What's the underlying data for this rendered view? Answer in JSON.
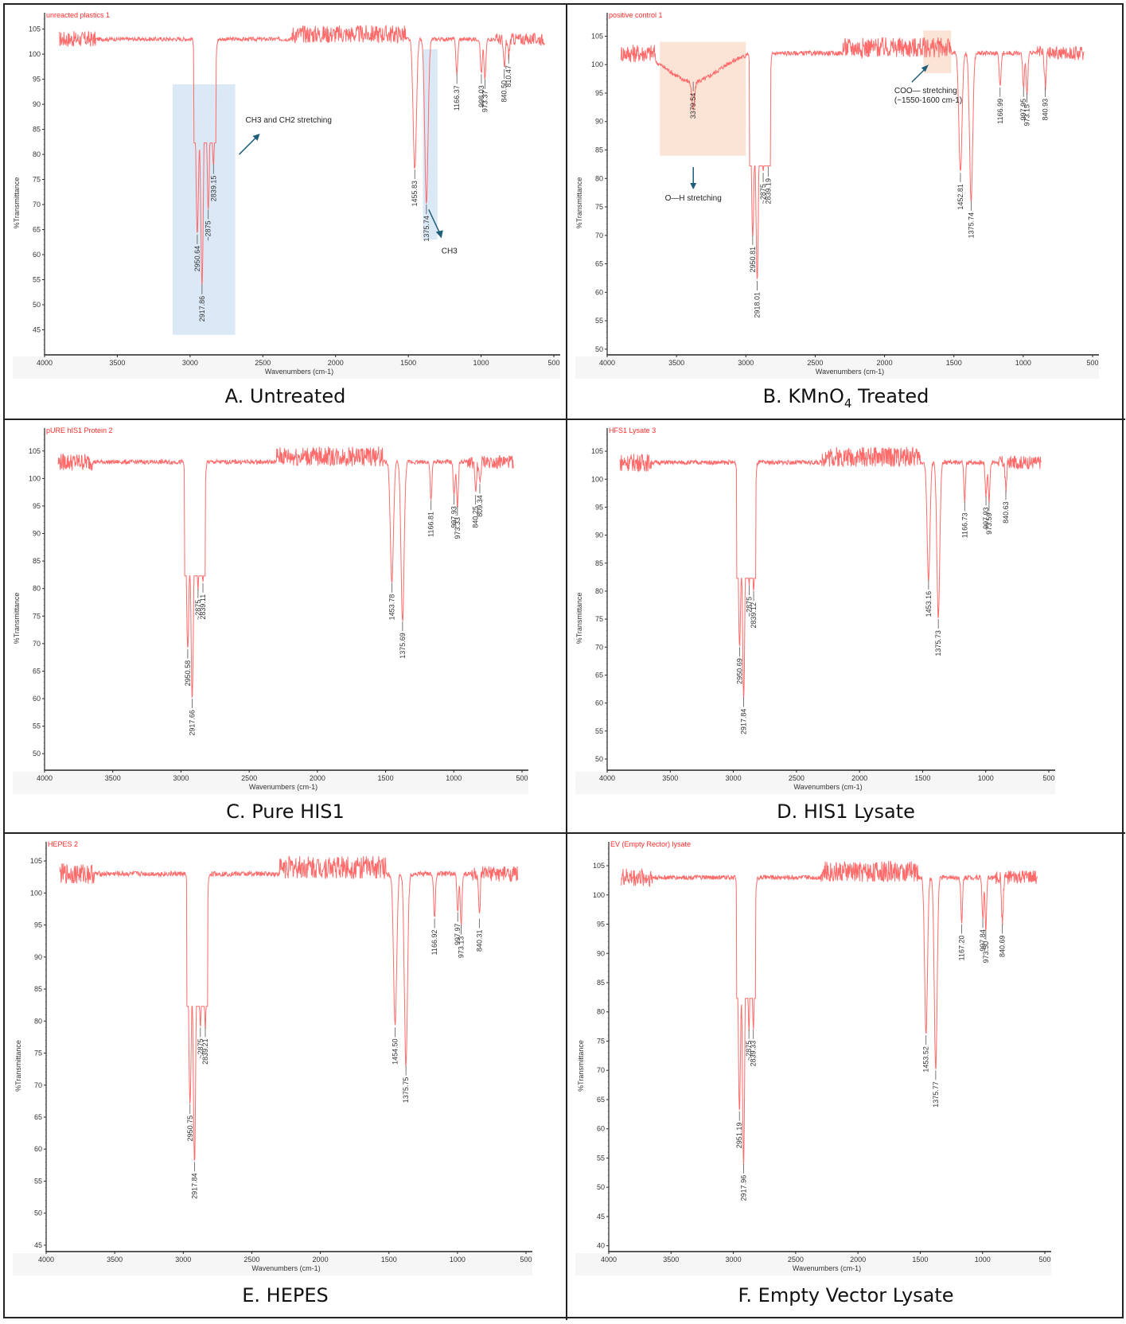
{
  "figure": {
    "panels_layout": "3 rows x 2 columns"
  },
  "colors": {
    "spectrum": "#ff6b6b",
    "peak_leader": "#555555",
    "highlight_blue": "#dbe8f6",
    "highlight_orange": "#fbe3d6",
    "arrow": "#1f5f7a"
  },
  "chart_data": [
    {
      "type": "line",
      "panel_id": "A",
      "caption": "A. Untreated",
      "sample_label": "unreacted plastics 1",
      "xlabel": "Wavenumbers (cm-1)",
      "ylabel": "%Transmittance",
      "xlim": [
        4000,
        500
      ],
      "ylim": [
        40,
        107
      ],
      "xticks": [
        4000,
        3500,
        3000,
        2500,
        2000,
        1500,
        1000,
        500
      ],
      "yticks": [
        45,
        50,
        55,
        60,
        65,
        70,
        75,
        80,
        85,
        90,
        95,
        100,
        105
      ],
      "baseline": 103,
      "peaks": [
        {
          "label": "2950.64",
          "x": 2950.64,
          "y": 64
        },
        {
          "label": "2917.86",
          "x": 2917.86,
          "y": 54
        },
        {
          "label": "~2875",
          "x": 2875,
          "y": 69
        },
        {
          "label": "2839.15",
          "x": 2839.15,
          "y": 78
        },
        {
          "label": "1455.83",
          "x": 1455.83,
          "y": 77
        },
        {
          "label": "1375.74",
          "x": 1375.74,
          "y": 70
        },
        {
          "label": "1166.37",
          "x": 1166.37,
          "y": 96
        },
        {
          "label": "998.03",
          "x": 998.03,
          "y": 96
        },
        {
          "label": "973.37",
          "x": 973.37,
          "y": 95
        },
        {
          "label": "840.50",
          "x": 840.5,
          "y": 97
        },
        {
          "label": "810.47",
          "x": 810.47,
          "y": 100
        }
      ],
      "annotations": [
        {
          "text": "CH3 and CH2 stretching",
          "region": [
            3120,
            2690
          ],
          "yrange": [
            44,
            94
          ]
        },
        {
          "text": "CH3",
          "region": [
            1400,
            1300
          ],
          "yrange": [
            63,
            101
          ]
        }
      ]
    },
    {
      "type": "line",
      "panel_id": "B",
      "caption": "B. KMnO4 Treated",
      "sample_label": "positive control 1",
      "xlabel": "Wavenumbers (cm-1)",
      "ylabel": "%Transmittance",
      "xlim": [
        4000,
        500
      ],
      "ylim": [
        49,
        108
      ],
      "xticks": [
        4000,
        3500,
        3000,
        2500,
        2000,
        1500,
        1000,
        500
      ],
      "yticks": [
        50,
        55,
        60,
        65,
        70,
        75,
        80,
        85,
        90,
        95,
        100,
        105
      ],
      "baseline": 102,
      "peaks": [
        {
          "label": "3379.54",
          "x": 3379.54,
          "y": 97
        },
        {
          "label": "2950.81",
          "x": 2950.81,
          "y": 70
        },
        {
          "label": "2918.01",
          "x": 2918.01,
          "y": 62
        },
        {
          "label": "~2875",
          "x": 2875,
          "y": 81
        },
        {
          "label": "2839.19",
          "x": 2839.19,
          "y": 82
        },
        {
          "label": "1452.81",
          "x": 1452.81,
          "y": 81
        },
        {
          "label": "1375.74",
          "x": 1375.74,
          "y": 76
        },
        {
          "label": "1166.99",
          "x": 1166.99,
          "y": 96
        },
        {
          "label": "997.95",
          "x": 997.95,
          "y": 96
        },
        {
          "label": "973.15",
          "x": 973.15,
          "y": 95
        },
        {
          "label": "840.93",
          "x": 840.93,
          "y": 96
        }
      ],
      "annotations": [
        {
          "text": "O—H stretching",
          "region": [
            3620,
            3000
          ],
          "yrange": [
            84,
            104
          ]
        },
        {
          "text": "COO— stretching",
          "text2": "(~1550-1600 cm-1)",
          "region": [
            1720,
            1520
          ],
          "yrange": [
            98.5,
            106
          ]
        }
      ]
    },
    {
      "type": "line",
      "panel_id": "C",
      "caption": "C. Pure HIS1",
      "sample_label": "pURE hIS1 Protein 2",
      "xlabel": "Wavenumbers (cm-1)",
      "ylabel": "%Transmittance",
      "xlim": [
        4000,
        500
      ],
      "ylim": [
        47,
        108
      ],
      "xticks": [
        4000,
        3500,
        3000,
        2500,
        2000,
        1500,
        1000,
        500
      ],
      "yticks": [
        50,
        55,
        60,
        65,
        70,
        75,
        80,
        85,
        90,
        95,
        100,
        105
      ],
      "baseline": 103,
      "peaks": [
        {
          "label": "2950.58",
          "x": 2950.58,
          "y": 69
        },
        {
          "label": "2917.66",
          "x": 2917.66,
          "y": 60
        },
        {
          "label": "~2875",
          "x": 2875,
          "y": 80
        },
        {
          "label": "2839.11",
          "x": 2839.11,
          "y": 81
        },
        {
          "label": "1453.78",
          "x": 1453.78,
          "y": 81
        },
        {
          "label": "1375.69",
          "x": 1375.69,
          "y": 74
        },
        {
          "label": "1166.81",
          "x": 1166.81,
          "y": 96
        },
        {
          "label": "997.93",
          "x": 997.93,
          "y": 97
        },
        {
          "label": "973.33",
          "x": 973.33,
          "y": 95
        },
        {
          "label": "840.25",
          "x": 840.25,
          "y": 97
        },
        {
          "label": "809.34",
          "x": 809.34,
          "y": 99
        }
      ],
      "annotations": []
    },
    {
      "type": "line",
      "panel_id": "D",
      "caption": "D. HIS1 Lysate",
      "sample_label": "HFS1 Lysate 3",
      "xlabel": "Wavenumbers (cm-1)",
      "ylabel": "%Transmittance",
      "xlim": [
        4000,
        500
      ],
      "ylim": [
        48,
        108
      ],
      "xticks": [
        4000,
        3500,
        3000,
        2500,
        2000,
        1500,
        1000,
        500
      ],
      "yticks": [
        50,
        55,
        60,
        65,
        70,
        75,
        80,
        85,
        90,
        95,
        100,
        105
      ],
      "baseline": 103,
      "peaks": [
        {
          "label": "2950.69",
          "x": 2950.69,
          "y": 70
        },
        {
          "label": "2917.84",
          "x": 2917.84,
          "y": 61
        },
        {
          "label": "~2875",
          "x": 2875,
          "y": 81
        },
        {
          "label": "2839.12",
          "x": 2839.12,
          "y": 80
        },
        {
          "label": "1453.16",
          "x": 1453.16,
          "y": 82
        },
        {
          "label": "1375.73",
          "x": 1375.73,
          "y": 75
        },
        {
          "label": "1166.73",
          "x": 1166.73,
          "y": 96
        },
        {
          "label": "997.93",
          "x": 997.93,
          "y": 97
        },
        {
          "label": "973.59",
          "x": 973.59,
          "y": 96
        },
        {
          "label": "840.63",
          "x": 840.63,
          "y": 98
        }
      ],
      "annotations": []
    },
    {
      "type": "line",
      "panel_id": "E",
      "caption": "E. HEPES",
      "sample_label": "HEPES 2",
      "xlabel": "Wavenumbers (cm-1)",
      "ylabel": "%Transmittance",
      "xlim": [
        4000,
        500
      ],
      "ylim": [
        44,
        107
      ],
      "xticks": [
        4000,
        3500,
        3000,
        2500,
        2000,
        1500,
        1000,
        500
      ],
      "yticks": [
        45,
        50,
        55,
        60,
        65,
        70,
        75,
        80,
        85,
        90,
        95,
        100,
        105
      ],
      "baseline": 103,
      "peaks": [
        {
          "label": "2950.75",
          "x": 2950.75,
          "y": 67
        },
        {
          "label": "2917.84",
          "x": 2917.84,
          "y": 58
        },
        {
          "label": "~2875",
          "x": 2875,
          "y": 79
        },
        {
          "label": "2839.21",
          "x": 2839.21,
          "y": 79
        },
        {
          "label": "1454.50",
          "x": 1454.5,
          "y": 79
        },
        {
          "label": "1375.75",
          "x": 1375.75,
          "y": 73
        },
        {
          "label": "1166.92",
          "x": 1166.92,
          "y": 96
        },
        {
          "label": "997.97",
          "x": 997.97,
          "y": 97
        },
        {
          "label": "973.13",
          "x": 973.13,
          "y": 95
        },
        {
          "label": "840.31",
          "x": 840.31,
          "y": 96
        }
      ],
      "annotations": []
    },
    {
      "type": "line",
      "panel_id": "F",
      "caption": "F. Empty Vector Lysate",
      "sample_label": "EV (Empty Rector) lysate",
      "xlabel": "Wavenumbers (cm-1)",
      "ylabel": "%Transmittance",
      "xlim": [
        4000,
        500
      ],
      "ylim": [
        39,
        108
      ],
      "xticks": [
        4000,
        3500,
        3000,
        2500,
        2000,
        1500,
        1000,
        500
      ],
      "yticks": [
        40,
        45,
        50,
        55,
        60,
        65,
        70,
        75,
        80,
        85,
        90,
        95,
        100,
        105
      ],
      "baseline": 103,
      "peaks": [
        {
          "label": "2951.19",
          "x": 2951.19,
          "y": 63
        },
        {
          "label": "2917.96",
          "x": 2917.96,
          "y": 54
        },
        {
          "label": "~2875",
          "x": 2875,
          "y": 77
        },
        {
          "label": "2839.33",
          "x": 2839.33,
          "y": 77
        },
        {
          "label": "1453.52",
          "x": 1453.52,
          "y": 76
        },
        {
          "label": "1375.77",
          "x": 1375.77,
          "y": 70
        },
        {
          "label": "1167.20",
          "x": 1167.2,
          "y": 95
        },
        {
          "label": "997.84",
          "x": 997.84,
          "y": 96
        },
        {
          "label": "973.50",
          "x": 973.5,
          "y": 94
        },
        {
          "label": "840.69",
          "x": 840.69,
          "y": 95
        }
      ],
      "annotations": []
    }
  ]
}
